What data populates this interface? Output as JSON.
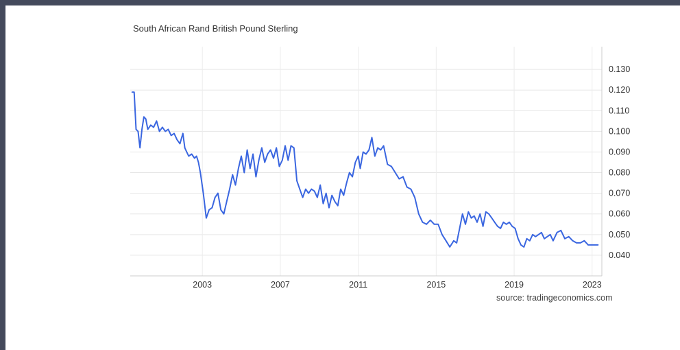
{
  "chart_data": {
    "type": "line",
    "title": "South African Rand British Pound Sterling",
    "source": "source: tradingeconomics.com",
    "xlabel": "",
    "ylabel": "",
    "xlim": [
      1999.3,
      2023.5
    ],
    "ylim": [
      0.03,
      0.141
    ],
    "yticks": [
      "0.130",
      "0.120",
      "0.110",
      "0.100",
      "0.090",
      "0.080",
      "0.070",
      "0.060",
      "0.050",
      "0.040"
    ],
    "xticks": [
      "2003",
      "2007",
      "2011",
      "2015",
      "2019",
      "2023"
    ],
    "grid": true,
    "line_color": "#3a66e0",
    "series": [
      {
        "x": [
          1999.4,
          1999.5,
          1999.6,
          1999.7,
          1999.8,
          1999.9,
          2000.0,
          2000.1,
          2000.2,
          2000.35,
          2000.5,
          2000.65,
          2000.8,
          2000.95,
          2001.1,
          2001.25,
          2001.4,
          2001.55,
          2001.7,
          2001.85,
          2002.0,
          2002.1,
          2002.2,
          2002.3,
          2002.45,
          2002.6,
          2002.7,
          2002.8,
          2002.9,
          2003.05,
          2003.2,
          2003.35,
          2003.5,
          2003.65,
          2003.8,
          2003.95,
          2004.1,
          2004.25,
          2004.4,
          2004.55,
          2004.7,
          2004.85,
          2005.0,
          2005.15,
          2005.3,
          2005.45,
          2005.6,
          2005.75,
          2005.9,
          2006.05,
          2006.2,
          2006.35,
          2006.5,
          2006.65,
          2006.8,
          2006.95,
          2007.1,
          2007.25,
          2007.4,
          2007.55,
          2007.7,
          2007.85,
          2008.0,
          2008.15,
          2008.3,
          2008.45,
          2008.6,
          2008.75,
          2008.9,
          2009.05,
          2009.2,
          2009.35,
          2009.5,
          2009.65,
          2009.8,
          2009.95,
          2010.1,
          2010.25,
          2010.4,
          2010.55,
          2010.7,
          2010.85,
          2011.0,
          2011.1,
          2011.25,
          2011.4,
          2011.55,
          2011.7,
          2011.85,
          2012.0,
          2012.15,
          2012.3,
          2012.5,
          2012.7,
          2012.9,
          2013.1,
          2013.3,
          2013.5,
          2013.7,
          2013.9,
          2014.1,
          2014.3,
          2014.5,
          2014.7,
          2014.9,
          2015.1,
          2015.3,
          2015.5,
          2015.7,
          2015.9,
          2016.05,
          2016.2,
          2016.35,
          2016.5,
          2016.65,
          2016.8,
          2016.95,
          2017.1,
          2017.25,
          2017.4,
          2017.55,
          2017.7,
          2017.85,
          2018.0,
          2018.15,
          2018.3,
          2018.45,
          2018.6,
          2018.75,
          2018.9,
          2019.05,
          2019.2,
          2019.35,
          2019.5,
          2019.65,
          2019.8,
          2019.95,
          2020.1,
          2020.25,
          2020.4,
          2020.55,
          2020.7,
          2020.85,
          2021.0,
          2021.2,
          2021.4,
          2021.6,
          2021.8,
          2022.0,
          2022.2,
          2022.4,
          2022.6,
          2022.8,
          2023.0,
          2023.15,
          2023.3
        ],
        "y": [
          0.119,
          0.119,
          0.101,
          0.1,
          0.092,
          0.101,
          0.107,
          0.106,
          0.101,
          0.103,
          0.102,
          0.105,
          0.1,
          0.102,
          0.1,
          0.101,
          0.098,
          0.099,
          0.096,
          0.094,
          0.099,
          0.092,
          0.09,
          0.088,
          0.089,
          0.087,
          0.088,
          0.085,
          0.08,
          0.07,
          0.058,
          0.062,
          0.063,
          0.068,
          0.07,
          0.062,
          0.06,
          0.066,
          0.072,
          0.079,
          0.074,
          0.082,
          0.088,
          0.08,
          0.091,
          0.082,
          0.089,
          0.078,
          0.086,
          0.092,
          0.085,
          0.089,
          0.091,
          0.087,
          0.092,
          0.083,
          0.086,
          0.093,
          0.086,
          0.093,
          0.092,
          0.076,
          0.072,
          0.068,
          0.072,
          0.07,
          0.072,
          0.071,
          0.068,
          0.074,
          0.065,
          0.07,
          0.063,
          0.069,
          0.066,
          0.064,
          0.072,
          0.069,
          0.075,
          0.08,
          0.078,
          0.085,
          0.088,
          0.082,
          0.09,
          0.089,
          0.091,
          0.097,
          0.088,
          0.092,
          0.091,
          0.093,
          0.084,
          0.083,
          0.08,
          0.077,
          0.078,
          0.073,
          0.072,
          0.068,
          0.06,
          0.056,
          0.055,
          0.057,
          0.055,
          0.055,
          0.05,
          0.047,
          0.044,
          0.047,
          0.046,
          0.053,
          0.06,
          0.055,
          0.061,
          0.058,
          0.059,
          0.056,
          0.06,
          0.054,
          0.061,
          0.06,
          0.058,
          0.056,
          0.054,
          0.053,
          0.056,
          0.055,
          0.056,
          0.054,
          0.053,
          0.048,
          0.045,
          0.044,
          0.048,
          0.047,
          0.05,
          0.049,
          0.05,
          0.051,
          0.048,
          0.049,
          0.05,
          0.047,
          0.051,
          0.052,
          0.048,
          0.049,
          0.047,
          0.046,
          0.046,
          0.047,
          0.045,
          0.045,
          0.045,
          0.045
        ]
      }
    ]
  }
}
